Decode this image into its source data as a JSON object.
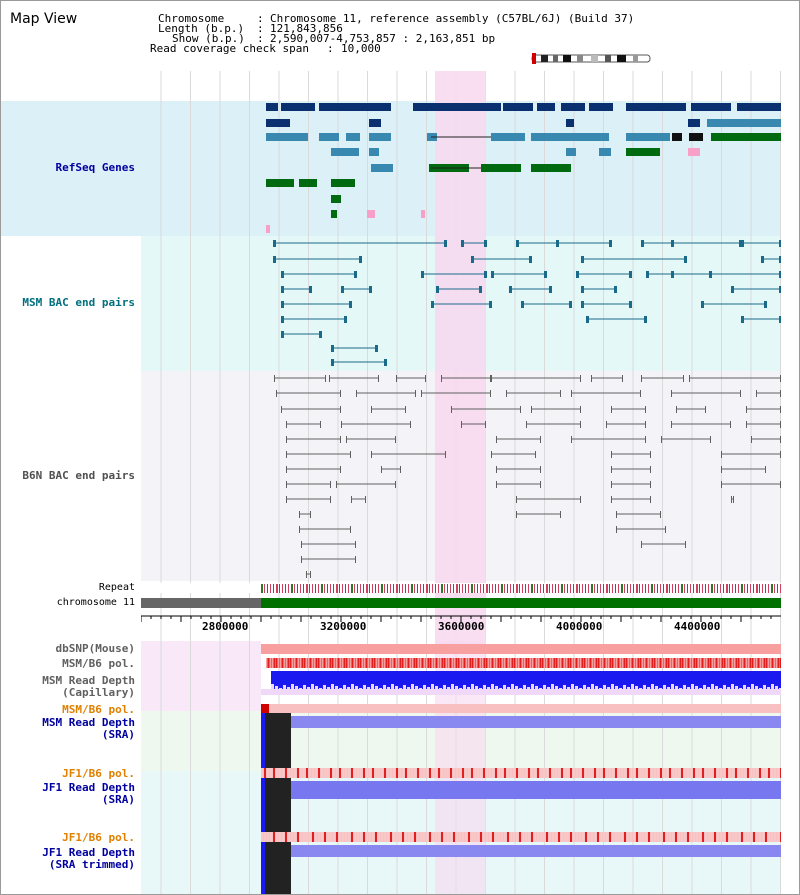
{
  "title": "Map View",
  "header": {
    "chromosome_key": "Chromosome",
    "chromosome_val": "Chromosome 11, reference assembly (C57BL/6J) (Build 37)",
    "length_key": "Length (b.p.)",
    "length_val": "121,843,856",
    "show_key": "Show (b.p.)",
    "show_val": "2,590,007-4,753,857 : 2,163,851 bp",
    "span_key": "Read coverage check span",
    "span_val": "10,000"
  },
  "tracks": {
    "refseq": "RefSeq Genes",
    "msm_bac": "MSM BAC end pairs",
    "b6n_bac": "B6N BAC end pairs",
    "repeat": "Repeat",
    "chromosome": "chromosome 11",
    "dbsnp": "dbSNP(Mouse)",
    "msm_b6_pol": "MSM/B6 pol.",
    "msm_depth_cap_1": "MSM Read Depth",
    "msm_depth_cap_2": "(Capillary)",
    "msm_b6_pol2": "MSM/B6 pol.",
    "msm_depth_sra_1": "MSM Read Depth",
    "msm_depth_sra_2": "(SRA)",
    "jf1_b6_pol": "JF1/B6 pol.",
    "jf1_depth_sra_1": "JF1 Read Depth",
    "jf1_depth_sra_2": "(SRA)",
    "jf1_b6_pol2": "JF1/B6 pol.",
    "jf1_depth_trim_1": "JF1 Read Depth",
    "jf1_depth_trim_2": "(SRA trimmed)"
  },
  "axis": {
    "ticks": [
      "2800000",
      "3200000",
      "3600000",
      "4000000",
      "4400000"
    ]
  },
  "colors": {
    "refseq_bg": "#dcf0f8",
    "msm_bg": "#e4f8f8",
    "b6n_bg": "#f4f4f8",
    "highlight": "#f8d8f0",
    "label_navy": "#0000a0",
    "label_teal": "#006f7f",
    "label_gray": "#505050",
    "label_orange": "#e08000",
    "chrom_green": "#007000"
  }
}
